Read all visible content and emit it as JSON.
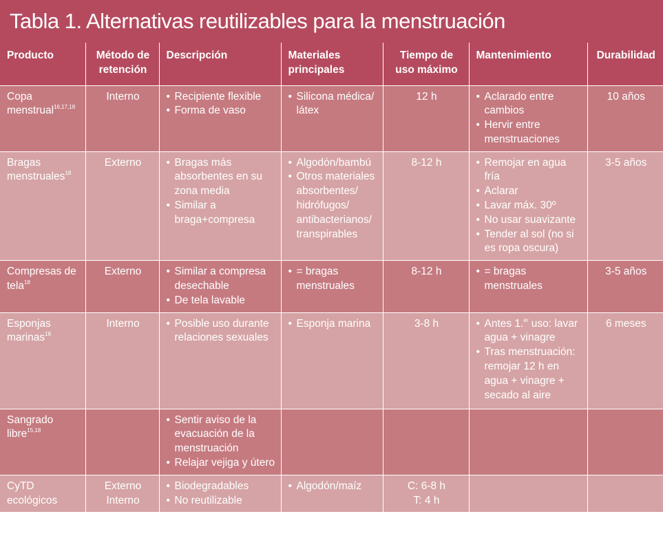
{
  "title": "Tabla 1. Alternativas reutilizables para la menstruación",
  "columns": [
    "Producto",
    "Método de retención",
    "Descripción",
    "Materiales principales",
    "Tiempo de uso máximo",
    "Mantenimiento",
    "Durabilidad"
  ],
  "colors": {
    "header": "#b54a5e",
    "row_dark": "#c57a80",
    "row_light": "#d5a3a5",
    "text": "#ffffff"
  },
  "rows": [
    {
      "product": "Copa menstrual",
      "refs": "16,17,18",
      "method": "Interno",
      "description": [
        "Recipiente flexible",
        "Forma de vaso"
      ],
      "materials": [
        "Silicona médica/ látex"
      ],
      "time": "12 h",
      "maintenance": [
        "Aclarado entre cambios",
        "Hervir entre menstruaciones"
      ],
      "durability": "10 años"
    },
    {
      "product": "Bragas menstruales",
      "refs": "18",
      "method": "Externo",
      "description": [
        "Bragas más absorbentes en su zona media",
        "Similar a braga+compresa"
      ],
      "materials": [
        "Algodón/bambú",
        "Otros materiales absorbentes/ hidrófugos/ antibacterianos/ transpirables"
      ],
      "time": "8-12 h",
      "maintenance": [
        "Remojar en agua fría",
        "Aclarar",
        "Lavar máx. 30º",
        "No usar suavizante",
        "Tender al sol (no si es ropa oscura)"
      ],
      "durability": "3-5 años"
    },
    {
      "product": "Compresas de tela",
      "refs": "18",
      "method": "Externo",
      "description": [
        "Similar a compresa desechable",
        "De tela lavable"
      ],
      "materials": [
        "= bragas menstruales"
      ],
      "time": "8-12 h",
      "maintenance": [
        "= bragas menstruales"
      ],
      "durability": "3-5 años"
    },
    {
      "product": "Esponjas marinas",
      "refs": "18",
      "method": "Interno",
      "description": [
        "Posible uso durante relaciones sexuales"
      ],
      "materials": [
        "Esponja marina"
      ],
      "time": "3-8 h",
      "maintenance_special": {
        "first_prefix": "Antes 1.",
        "first_sup": "er",
        "first_rest": " uso: lavar agua + vinagre",
        "second": "Tras menstruación: remojar 12 h en agua + vinagre + secado al aire"
      },
      "durability": "6 meses"
    },
    {
      "product": "Sangrado libre",
      "refs": "15,18",
      "method": "",
      "description": [
        "Sentir aviso de la evacuación de la menstruación",
        "Relajar vejiga y útero"
      ],
      "materials": [],
      "time": "",
      "maintenance": [],
      "durability": ""
    },
    {
      "product": "CyTD ecológicos",
      "refs": "",
      "method_lines": [
        "Externo",
        "Interno"
      ],
      "description": [
        "Biodegradables",
        "No reutilizable"
      ],
      "materials": [
        "Algodón/maíz"
      ],
      "time_lines": [
        "C: 6-8 h",
        "T: 4 h"
      ],
      "maintenance": [],
      "durability": ""
    }
  ]
}
